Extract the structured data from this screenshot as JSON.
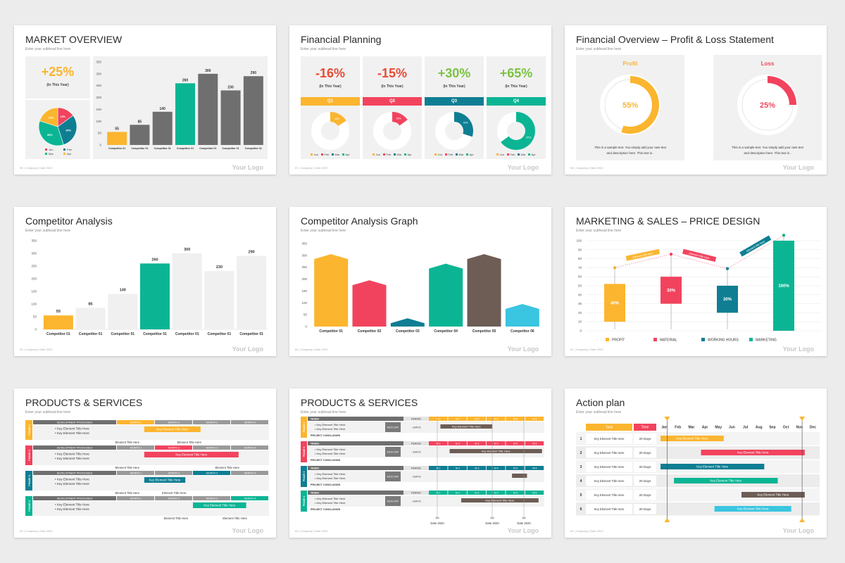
{
  "logo_text": "Your Logo",
  "footer_text": "| Company  | Date 2020",
  "colors": {
    "yellow": "#fbb52f",
    "pink": "#f2435e",
    "teal": "#0f7e93",
    "green": "#0bb594",
    "gray": "#6f6f6f",
    "brown": "#6d5d55",
    "cyan": "#3ac5e0"
  },
  "slides": [
    {
      "title": "MARKET OVERVIEW",
      "subtitle": "Enter your subhead line here",
      "page": "55",
      "kpi_value": "+25%",
      "kpi_label": "(In This Year)",
      "pie_slices": [
        {
          "label": "Jun",
          "value": "15%",
          "percent": 15,
          "color": "#f2435e"
        },
        {
          "label": "Feb",
          "value": "30%",
          "percent": 30,
          "color": "#0f7e93"
        },
        {
          "label": "Mar",
          "value": "35%",
          "percent": 35,
          "color": "#0bb594"
        },
        {
          "label": "Apr",
          "value": "20%",
          "percent": 20,
          "color": "#fbb52f"
        }
      ],
      "pie_legend": [
        "Jun",
        "Feb",
        "Mar",
        "Apr"
      ],
      "chart_data": {
        "type": "bar",
        "categories": [
          "Competitor 01",
          "Competitor 01",
          "Competitor 01",
          "Competitor 01",
          "Competitor 01",
          "Competitor 01",
          "Competitor 01"
        ],
        "values": [
          55,
          85,
          140,
          260,
          300,
          230,
          290
        ],
        "ylim": [
          0,
          350
        ],
        "yticks": [
          "0",
          "50",
          "100",
          "150",
          "200",
          "250",
          "300",
          "350"
        ]
      }
    },
    {
      "title": "Financial Planning",
      "subtitle": "Enter your subhead line here",
      "page": "57",
      "quarters": [
        {
          "kpi": "-16%",
          "label": "(In This Year)",
          "q": "Q1",
          "color": "#fbb52f",
          "kpi_color": "#e94b35",
          "donut_pct": 16,
          "donut_label": "16%"
        },
        {
          "kpi": "-15%",
          "label": "(In This Year)",
          "q": "Q2",
          "color": "#f2435e",
          "kpi_color": "#e94b35",
          "donut_pct": 15,
          "donut_label": "15%"
        },
        {
          "kpi": "+30%",
          "label": "(In This Year)",
          "q": "Q3",
          "color": "#0f7e93",
          "kpi_color": "#7bc242",
          "donut_pct": 30,
          "donut_label": "30%"
        },
        {
          "kpi": "+65%",
          "label": "(In This Year)",
          "q": "Q4",
          "color": "#0bb594",
          "kpi_color": "#7bc242",
          "donut_pct": 65,
          "donut_label": "65%"
        }
      ],
      "donut_legend": [
        "Jun",
        "Feb",
        "Mar",
        "Apr"
      ]
    },
    {
      "title": "Financial Overview – Profit & Loss Statement",
      "subtitle": "Enter your subhead line here",
      "page": "58",
      "cards": [
        {
          "heading": "Profit",
          "percent": 55,
          "label": "55%",
          "color": "#fbb52f",
          "text1": "This is a sample text. You simply add your own text",
          "text2": "and description here. This text is ."
        },
        {
          "heading": "Loss",
          "percent": 25,
          "label": "25%",
          "color": "#f2435e",
          "text1": "This is a sample text. You simply add your own text",
          "text2": "and description here. This text is ."
        }
      ]
    },
    {
      "title": "Competitor Analysis",
      "subtitle": "Enter your subhead line here",
      "page": "59",
      "chart_data": {
        "type": "bar",
        "categories": [
          "Competitor 01",
          "Competitor 01",
          "Competitor 01",
          "Competitor 01",
          "Competitor 01",
          "Competitor 01",
          "Competitor 01"
        ],
        "values": [
          55,
          85,
          140,
          260,
          300,
          230,
          290
        ],
        "value_labels": [
          "55",
          "85",
          "140",
          "260",
          "300",
          "230",
          "290"
        ],
        "ylim": [
          0,
          350
        ],
        "yticks": [
          "0",
          "50",
          "100",
          "150",
          "200",
          "250",
          "300",
          "350"
        ]
      }
    },
    {
      "title": "Competitor Analysis Graph",
      "subtitle": "Enter your subhead line here",
      "page": "60",
      "chart_data": {
        "type": "bar",
        "categories": [
          "Competitor 01",
          "Competitor 02",
          "Competitor 03",
          "Competitor 04",
          "Competitor 05",
          "Competitor 06"
        ],
        "values": [
          305,
          195,
          35,
          265,
          305,
          95
        ],
        "colors": [
          "#fbb52f",
          "#f2435e",
          "#0f7e93",
          "#0bb594",
          "#6d5d55",
          "#3ac5e0"
        ],
        "ylim": [
          0,
          350
        ],
        "yticks": [
          "0",
          "50",
          "100",
          "150",
          "200",
          "250",
          "300",
          "350"
        ]
      }
    },
    {
      "title": "MARKETING & SALES – PRICE DESIGN",
      "subtitle": "Enter your subhead line here",
      "page": "61",
      "chart_data": {
        "type": "bar",
        "series": [
          {
            "name": "PROFIT",
            "low": 10,
            "high": 52,
            "whisker_top": 70,
            "label": "40%",
            "color": "#fbb52f"
          },
          {
            "name": "MATERIAL",
            "low": 30,
            "high": 60,
            "whisker_top": 85,
            "label": "30%",
            "color": "#f2435e"
          },
          {
            "name": "WORKING HOURS",
            "low": 20,
            "high": 50,
            "whisker_top": 69,
            "label": "30%",
            "color": "#0f7e93"
          },
          {
            "name": "MARKETING",
            "low": 0,
            "high": 100,
            "whisker_top": 106,
            "label": "100%",
            "color": "#0bb594"
          }
        ],
        "ylim": [
          0,
          100
        ],
        "yticks": [
          "0",
          "10",
          "20",
          "30",
          "40",
          "50",
          "60",
          "70",
          "80",
          "90",
          "100"
        ],
        "banner_labels": [
          "Element title here",
          "Element title here",
          "Element title here"
        ]
      }
    },
    {
      "title": "PRODUCTS & SERVICES",
      "subtitle": "Enter your subhead line here",
      "page": "62",
      "header_label": "DEVELOPMENT PROCESSES",
      "months": [
        "MONTH 1",
        "MONTH 2",
        "MONTH 3",
        "MONTH 4"
      ],
      "phases": [
        {
          "name": "PHASE 1",
          "color": "#fbb52f",
          "bar": "Key Element Title Here",
          "active": 0,
          "bar_start": 0.18,
          "bar_end": 0.55,
          "notes": [
            "Element Title Here",
            "Element Title Here"
          ]
        },
        {
          "name": "PHASE 2",
          "color": "#f2435e",
          "bar": "Key Element Title Here",
          "active": 1,
          "bar_start": 0.18,
          "bar_end": 0.8,
          "notes": [
            "Element Title Here",
            "Element Title Here"
          ]
        },
        {
          "name": "PHASE 3",
          "color": "#0f7e93",
          "bar": "Key Element Title Here",
          "active": 2,
          "bar_start": 0.18,
          "bar_end": 0.45,
          "notes": [
            "Element Title Here",
            "Element Title Here"
          ]
        },
        {
          "name": "PHASE 4",
          "color": "#0bb594",
          "bar": "Key Element Title Here",
          "active": 3,
          "bar_start": 0.5,
          "bar_end": 0.85,
          "notes": [
            "Element Title Here",
            "Element Title Here"
          ]
        }
      ],
      "bullet": "Key Element Title Here"
    },
    {
      "title": "PRODUCTS & SERVICES",
      "subtitle": "Enter your subhead line here",
      "page": "63",
      "tasks_label": "TASKS",
      "period_label": "PERIOD",
      "kick_label": "KICK-OFF",
      "days_label": "--DAYS",
      "conclusion_label": "PROJECT CONCLUSION",
      "months": [
        "M 1",
        "M 2",
        "M 3",
        "M 4",
        "M 5",
        "M 6"
      ],
      "phases": [
        {
          "name": "PHASE 1",
          "color": "#fbb52f",
          "bar": "Key Element Title Here",
          "bar_start": 0.1,
          "bar_end": 0.55
        },
        {
          "name": "PHASE 2",
          "color": "#f2435e",
          "bar": "Key Element Title Here",
          "bar_start": 0.18,
          "bar_end": 0.98
        },
        {
          "name": "PHASE 3",
          "color": "#0f7e93",
          "bar": "",
          "bar_start": 0.72,
          "bar_end": 0.85
        },
        {
          "name": "PHASE 4",
          "color": "#0bb594",
          "bar": "Key Element Title Here",
          "bar_start": 0.28,
          "bar_end": 0.95
        }
      ],
      "bullet": "Key Element Title Here",
      "dates": [
        "Date 2020",
        "Date 2020",
        "Date 2020"
      ]
    },
    {
      "title": "Action plan",
      "subtitle": "Enter your subhead line here",
      "page": "64",
      "task_header": "Task",
      "time_header": "Time",
      "months": [
        "Jan",
        "Feb",
        "Mar",
        "Apr",
        "May",
        "Jun",
        "Jul",
        "Aug",
        "Sep",
        "Oct",
        "Nov",
        "Dec"
      ],
      "rows": [
        {
          "n": "1",
          "task": "Key Element Title Here",
          "time": "20 Days",
          "bar": "Key Element Title Here",
          "start": 1,
          "end": 5,
          "color": "#fbb52f"
        },
        {
          "n": "2",
          "task": "Key Element Title Here",
          "time": "20 Days",
          "bar": "Key Element Title Here",
          "start": 4,
          "end": 11,
          "color": "#f2435e"
        },
        {
          "n": "3",
          "task": "Key Element Title Here",
          "time": "20 Days",
          "bar": "Key Element Title Here",
          "start": 1,
          "end": 8,
          "color": "#0f7e93"
        },
        {
          "n": "4",
          "task": "Key Element Title Here",
          "time": "20 Days",
          "bar": "Key Element Title Here",
          "start": 2,
          "end": 9,
          "color": "#0bb594"
        },
        {
          "n": "5",
          "task": "Key Element Title Here",
          "time": "20 Days",
          "bar": "Key Element Title Here",
          "start": 7,
          "end": 11,
          "color": "#6d5d55"
        },
        {
          "n": "6",
          "task": "Key Element Title Here",
          "time": "20 Days",
          "bar": "Key Element Title Here",
          "start": 5,
          "end": 10,
          "color": "#3ac5e0"
        }
      ]
    }
  ]
}
